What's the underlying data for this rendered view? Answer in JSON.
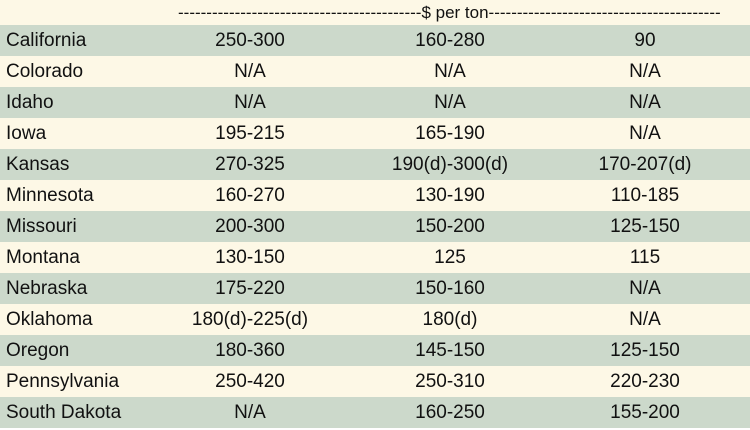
{
  "units_label": "$ per ton",
  "rows": [
    {
      "state": "California",
      "c1": "250-300",
      "c2": "160-280",
      "c3": "90"
    },
    {
      "state": "Colorado",
      "c1": "N/A",
      "c2": "N/A",
      "c3": "N/A"
    },
    {
      "state": "Idaho",
      "c1": "N/A",
      "c2": "N/A",
      "c3": "N/A"
    },
    {
      "state": "Iowa",
      "c1": "195-215",
      "c2": "165-190",
      "c3": "N/A"
    },
    {
      "state": "Kansas",
      "c1": "270-325",
      "c2": "190(d)-300(d)",
      "c3": "170-207(d)"
    },
    {
      "state": "Minnesota",
      "c1": "160-270",
      "c2": "130-190",
      "c3": "110-185"
    },
    {
      "state": "Missouri",
      "c1": "200-300",
      "c2": "150-200",
      "c3": "125-150"
    },
    {
      "state": "Montana",
      "c1": "130-150",
      "c2": "125",
      "c3": "115"
    },
    {
      "state": "Nebraska",
      "c1": "175-220",
      "c2": "150-160",
      "c3": "N/A"
    },
    {
      "state": "Oklahoma",
      "c1": "180(d)-225(d)",
      "c2": "180(d)",
      "c3": "N/A"
    },
    {
      "state": "Oregon",
      "c1": "180-360",
      "c2": "145-150",
      "c3": "125-150"
    },
    {
      "state": "Pennsylvania",
      "c1": "250-420",
      "c2": "250-310",
      "c3": "220-230"
    },
    {
      "state": "South Dakota",
      "c1": "N/A",
      "c2": "160-250",
      "c3": "155-200"
    }
  ]
}
